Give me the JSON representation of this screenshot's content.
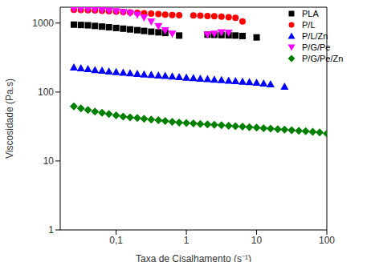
{
  "chart_data": {
    "type": "scatter",
    "x_label": "Taxa de Cisalhamento (s⁻¹)",
    "y_label": "Viscosidade (Pa.s)",
    "log": true,
    "legend": "upper right",
    "xlim": [
      0.016,
      100
    ],
    "ylim": [
      1,
      1700
    ],
    "xticks": [
      {
        "value": 0.1,
        "label": "0,1"
      },
      1,
      10,
      100
    ],
    "yticks": [
      1,
      10,
      100,
      1000
    ],
    "series": [
      {
        "name": "PLA",
        "color": "#000000",
        "marker": "square",
        "x": [
          0.025,
          0.0315,
          0.0397,
          0.05,
          0.063,
          0.079,
          0.1,
          0.126,
          0.158,
          0.2,
          0.25,
          0.316,
          0.4,
          0.5,
          0.79,
          2,
          2.5,
          3.16,
          4,
          5,
          6.3,
          10
        ],
        "values": [
          950,
          940,
          930,
          910,
          890,
          870,
          850,
          830,
          810,
          790,
          770,
          750,
          735,
          720,
          660,
          680,
          675,
          670,
          665,
          660,
          650,
          620
        ]
      },
      {
        "name": "P/L",
        "color": "#ff0000",
        "marker": "circle",
        "x": [
          0.025,
          0.0315,
          0.0397,
          0.05,
          0.063,
          0.079,
          0.1,
          0.126,
          0.158,
          0.2,
          0.25,
          0.316,
          0.4,
          0.5,
          0.63,
          0.79,
          1.26,
          1.58,
          2,
          2.5,
          3.16,
          4,
          5,
          6.3
        ],
        "values": [
          1560,
          1550,
          1540,
          1530,
          1510,
          1490,
          1470,
          1450,
          1430,
          1410,
          1390,
          1370,
          1350,
          1330,
          1310,
          1300,
          1290,
          1280,
          1270,
          1260,
          1240,
          1220,
          1190,
          1060
        ]
      },
      {
        "name": "P/L/Zn",
        "color": "#0000ff",
        "marker": "triangle",
        "x": [
          0.025,
          0.0315,
          0.0397,
          0.05,
          0.063,
          0.079,
          0.1,
          0.126,
          0.158,
          0.2,
          0.25,
          0.316,
          0.4,
          0.5,
          0.63,
          0.79,
          1,
          1.26,
          1.58,
          2,
          2.5,
          3.16,
          4,
          5,
          6.3,
          7.9,
          10,
          12.6,
          15.8,
          25
        ],
        "values": [
          228,
          222,
          216,
          210,
          205,
          200,
          196,
          192,
          188,
          184,
          181,
          178,
          175,
          172,
          169,
          166,
          163,
          160,
          157,
          155,
          152,
          150,
          147,
          145,
          142,
          140,
          137,
          134,
          130,
          120
        ]
      },
      {
        "name": "P/G/Pe",
        "color": "#ff00ff",
        "marker": "triangle-down",
        "x": [
          0.025,
          0.0315,
          0.0397,
          0.05,
          0.063,
          0.079,
          0.1,
          0.126,
          0.158,
          0.2,
          0.25,
          0.316,
          0.4,
          0.5,
          0.63,
          2,
          2.5,
          3.16,
          4
        ],
        "values": [
          1600,
          1590,
          1580,
          1560,
          1540,
          1510,
          1480,
          1440,
          1390,
          1320,
          1200,
          1050,
          900,
          780,
          700,
          680,
          700,
          730,
          720
        ]
      },
      {
        "name": "P/G/Pe/Zn",
        "color": "#008000",
        "marker": "diamond",
        "x": [
          0.025,
          0.0315,
          0.0397,
          0.05,
          0.063,
          0.079,
          0.1,
          0.126,
          0.158,
          0.2,
          0.25,
          0.316,
          0.4,
          0.5,
          0.63,
          0.79,
          1,
          1.26,
          1.58,
          2,
          2.5,
          3.16,
          4,
          5,
          6.3,
          7.9,
          10,
          12.6,
          15.8,
          20,
          25,
          31.6,
          40,
          50,
          63,
          79,
          100
        ],
        "values": [
          62,
          58,
          55,
          52,
          50,
          48,
          46,
          44,
          43,
          42,
          41,
          40,
          39,
          38,
          37,
          36,
          35.5,
          35,
          34.5,
          34,
          33.5,
          33,
          32.5,
          32,
          31.5,
          31,
          30.5,
          30,
          29.5,
          29,
          28.5,
          28,
          27.5,
          27,
          26.5,
          26,
          25
        ]
      }
    ]
  }
}
